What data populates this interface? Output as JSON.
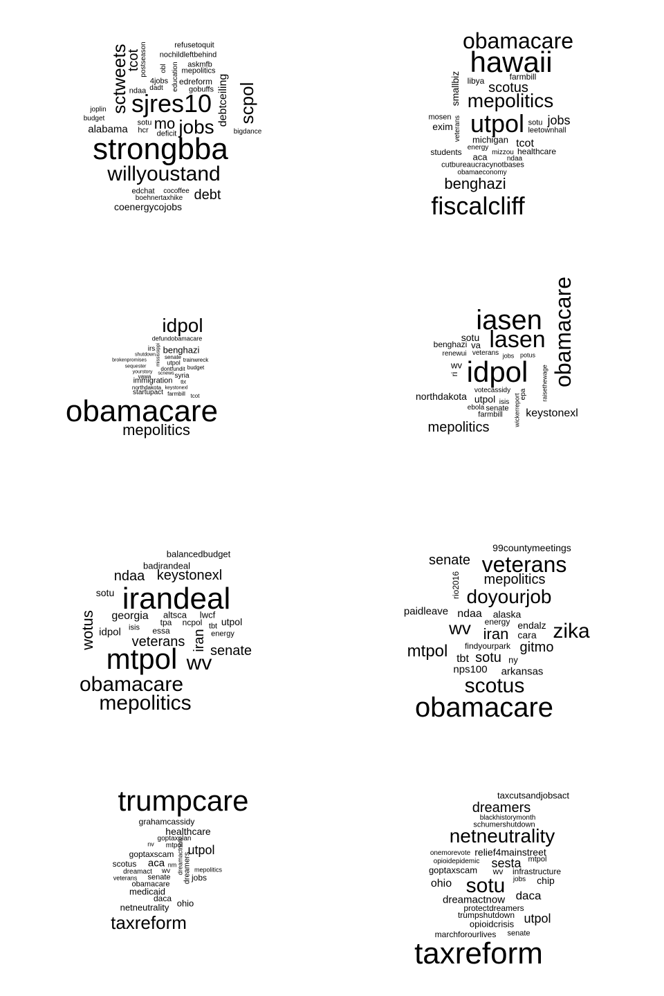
{
  "clouds": [
    {
      "words": [
        "strongbba",
        "sjres10",
        "willyoustand",
        "sctweets",
        "jobs",
        "scpol",
        "mo",
        "tcot",
        "debt",
        "debtceiling",
        "alabama",
        "coenergycojobs",
        "refusetoquit",
        "nochildleftbehind",
        "postseason",
        "askmfb",
        "obl",
        "education",
        "mepolitics",
        "4jobs",
        "edreform",
        "ndaa",
        "dadt",
        "gobuffs",
        "joplin",
        "budget",
        "sotu",
        "hcr",
        "deficit",
        "bigdance",
        "edchat",
        "cocoffee",
        "boehnertaxhike"
      ]
    },
    {
      "words": [
        "obamacare",
        "hawaii",
        "smallbiz",
        "farmbill",
        "libya",
        "scotus",
        "mepolitics",
        "mosen",
        "exim",
        "veterans",
        "utpol",
        "sotu",
        "jobs",
        "leetownhall",
        "michigan",
        "tcot",
        "students",
        "energy",
        "mizzou",
        "healthcare",
        "aca",
        "ndaa",
        "cutbureaucracynotbases",
        "obamaeconomy",
        "benghazi",
        "fiscalcliff"
      ]
    },
    {
      "words": [
        "idpol",
        "defundobamacare",
        "irs",
        "benghazi",
        "shutdown",
        "senate",
        "brokenpromises",
        "utpol",
        "trainwreck",
        "sequester",
        "mississippi",
        "dontfundit",
        "budget",
        "yourstory",
        "scnews",
        "vawa",
        "syria",
        "immigration",
        "tbt",
        "northdakota",
        "keystonexl",
        "startupact",
        "farmbill",
        "tcot",
        "obamacare",
        "mepolitics"
      ]
    },
    {
      "words": [
        "obamacare",
        "iasen",
        "sotu",
        "lasen",
        "benghazi",
        "va",
        "renewui",
        "veterans",
        "jobs",
        "potus",
        "wv",
        "ri",
        "idpol",
        "raisethewage",
        "votecassidy",
        "northdakota",
        "utpol",
        "isis",
        "epa",
        "ebola",
        "senate",
        "farmbill",
        "wickerreport",
        "keystonexl",
        "mepolitics"
      ]
    },
    {
      "words": [
        "balancedbudget",
        "badirandeal",
        "ndaa",
        "keystonexl",
        "sotu",
        "irandeal",
        "wotus",
        "georgia",
        "altsca",
        "lwcf",
        "tpa",
        "ncpol",
        "utpol",
        "isis",
        "tbt",
        "idpol",
        "essa",
        "energy",
        "veterans",
        "iran",
        "senate",
        "mtpol",
        "wv",
        "obamacare",
        "mepolitics"
      ]
    },
    {
      "words": [
        "99countymeetings",
        "senate",
        "veterans",
        "rio2016",
        "mepolitics",
        "doyourjob",
        "paidleave",
        "ndaa",
        "alaska",
        "energy",
        "wv",
        "endalz",
        "iran",
        "cara",
        "zika",
        "findyourpark",
        "mtpol",
        "gitmo",
        "tbt",
        "sotu",
        "ny",
        "nps100",
        "arkansas",
        "scotus",
        "obamacare"
      ]
    },
    {
      "words": [
        "trumpcare",
        "grahamcassidy",
        "healthcare",
        "goptaxplan",
        "nv",
        "mtpol",
        "utpol",
        "goptaxscam",
        "dreamactnow",
        "scotus",
        "aca",
        "nm",
        "dreamers",
        "mepolitics",
        "dreamact",
        "wv",
        "veterans",
        "senate",
        "jobs",
        "obamacare",
        "medicaid",
        "daca",
        "netneutrality",
        "ohio",
        "taxreform"
      ]
    },
    {
      "words": [
        "taxcutsandjobsact",
        "dreamers",
        "blackhistorymonth",
        "schumershutdown",
        "netneutrality",
        "onemorevote",
        "relief4mainstreet",
        "mtpol",
        "opioidepidemic",
        "sesta",
        "goptaxscam",
        "wv",
        "infrastructure",
        "jobs",
        "ohio",
        "chip",
        "sotu",
        "daca",
        "dreamactnow",
        "protectdreamers",
        "trumpshutdown",
        "utpol",
        "opioidcrisis",
        "marchforourlives",
        "senate",
        "taxreform"
      ]
    }
  ]
}
